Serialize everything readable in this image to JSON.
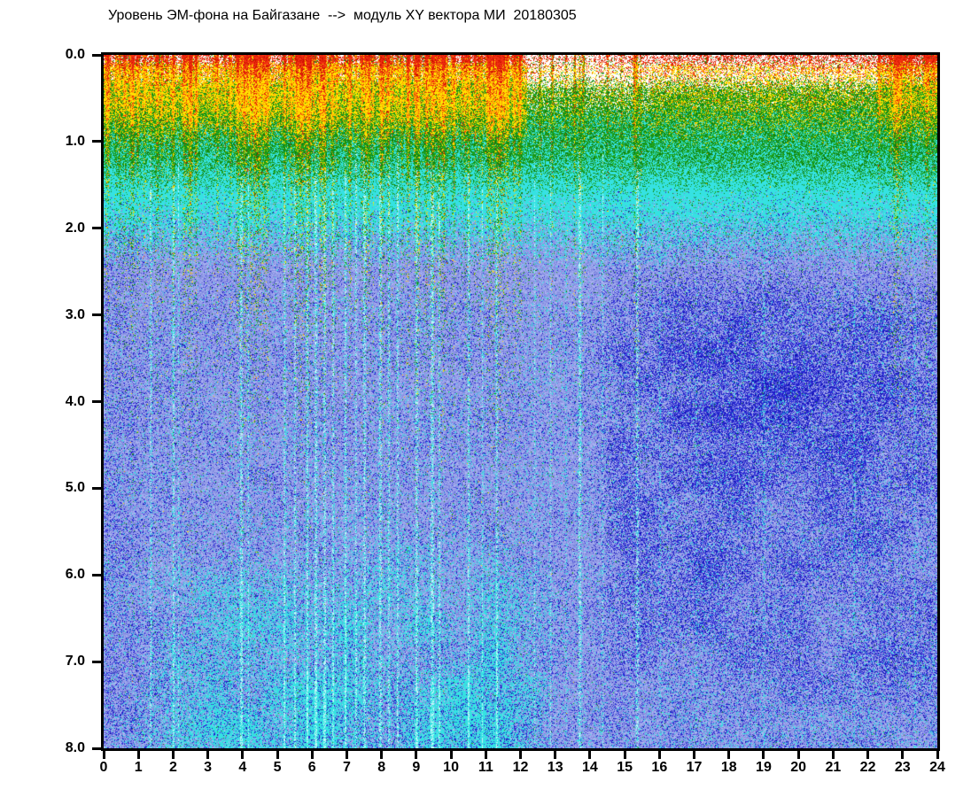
{
  "title": {
    "text": "Уровень ЭМ-фона на Байгазане  -->  модуль XY вектора МИ  20180305"
  },
  "chart_data": {
    "type": "heatmap",
    "title": "Уровень ЭМ-фона на Байгазане  -->  модуль XY вектора МИ  20180305",
    "station_label": "Уровень ЭМ-фона на Байгазане",
    "series_label": "модуль XY вектора МИ",
    "date_label": "20180305",
    "xlabel": "",
    "ylabel": "",
    "xlim": [
      0,
      24
    ],
    "ylim": [
      0,
      8
    ],
    "y_axis_inverted": true,
    "grid": false,
    "legend": "none",
    "x_ticks": [
      "0",
      "1",
      "2",
      "3",
      "4",
      "5",
      "6",
      "7",
      "8",
      "9",
      "10",
      "11",
      "12",
      "13",
      "14",
      "15",
      "16",
      "17",
      "18",
      "19",
      "20",
      "21",
      "22",
      "23",
      "24"
    ],
    "y_ticks": [
      "0.0",
      "1.0",
      "2.0",
      "3.0",
      "4.0",
      "5.0",
      "6.0",
      "7.0",
      "8.0"
    ],
    "noise_seed": 20180305,
    "palette": {
      "red": "#f23010",
      "red_dark": "#cc0f00",
      "orange": "#ff9e00",
      "yellow": "#ffe400",
      "green": "#1ea51e",
      "green_dark": "#0f7d0f",
      "cyan_base": "#49e6e6",
      "cyan_dot": "#35e2e2",
      "cyan_pale": "#bdf8f8",
      "periwinkle_base": "#949ee9",
      "periwinkle_dark": "#7d86dd",
      "periwinkle_light": "#aeb6f2",
      "blue_dark": "#2b2bd8",
      "blue_deep": "#1313b2",
      "background": "#ffffff",
      "axis": "#000000"
    },
    "surface_red_band": [
      [
        0,
        12.2,
        0.55
      ],
      [
        12.2,
        13.4,
        0.3
      ],
      [
        13.4,
        14.1,
        0.18
      ],
      [
        14.1,
        15.8,
        0.35
      ],
      [
        15.8,
        22.3,
        0.5
      ],
      [
        22.3,
        24.01,
        0.8
      ]
    ],
    "yellow_band": [
      [
        0,
        12.2,
        0.95
      ],
      [
        12.2,
        15.8,
        0.3
      ],
      [
        15.8,
        22.3,
        0.5
      ],
      [
        22.3,
        24.01,
        0.8
      ]
    ],
    "green_band": [
      [
        0,
        12.2,
        1.0
      ],
      [
        12.2,
        24.01,
        1.1
      ]
    ],
    "event_columns": {
      "dense_left": {
        "x0": 0,
        "x1": 12.2,
        "count": 120
      },
      "dense_right": {
        "x0": 22.3,
        "x1": 24,
        "count": 12
      },
      "extra": [
        [
          12.55,
          0.5,
          1.3
        ],
        [
          12.9,
          0.55,
          1.4
        ],
        [
          13.3,
          0.4,
          1.2
        ],
        [
          13.55,
          0.6,
          1.6
        ],
        [
          13.8,
          0.5,
          1.3
        ],
        [
          14.5,
          0.35,
          1.1
        ],
        [
          14.9,
          0.3,
          1.0
        ],
        [
          15.28,
          0.85,
          1.6
        ],
        [
          15.45,
          0.4,
          1.1
        ],
        [
          16.55,
          0.22,
          1.0
        ],
        [
          17.35,
          0.2,
          1.0
        ],
        [
          18.05,
          0.2,
          1.0
        ],
        [
          19.15,
          0.22,
          1.0
        ],
        [
          20.3,
          0.2,
          1.0
        ],
        [
          21.15,
          0.2,
          1.0
        ]
      ]
    },
    "dropout_streaks": [
      [
        1.35,
        0.55,
        1.2
      ],
      [
        2.0,
        0.6,
        1.4
      ],
      [
        2.15,
        0.35,
        1.0
      ],
      [
        3.95,
        0.65,
        1.6
      ],
      [
        4.15,
        0.4,
        1.2
      ],
      [
        5.2,
        0.55,
        1.3
      ],
      [
        5.5,
        0.5,
        1.2
      ],
      [
        5.85,
        0.65,
        1.5
      ],
      [
        6.1,
        0.7,
        1.6
      ],
      [
        6.35,
        0.6,
        1.4
      ],
      [
        6.6,
        0.55,
        1.3
      ],
      [
        6.95,
        0.6,
        1.4
      ],
      [
        7.25,
        0.45,
        1.2
      ],
      [
        7.5,
        0.6,
        1.4
      ],
      [
        7.95,
        0.65,
        1.5
      ],
      [
        8.2,
        0.55,
        1.3
      ],
      [
        8.45,
        0.5,
        1.2
      ],
      [
        9.0,
        0.6,
        1.5
      ],
      [
        9.45,
        0.7,
        1.8
      ],
      [
        9.65,
        0.5,
        1.2
      ],
      [
        10.5,
        0.6,
        1.5
      ],
      [
        10.9,
        0.4,
        1.1
      ],
      [
        11.3,
        0.55,
        1.3
      ],
      [
        12.4,
        0.35,
        1.0
      ],
      [
        12.85,
        0.4,
        1.1
      ],
      [
        13.3,
        0.35,
        1.0
      ],
      [
        13.7,
        0.75,
        1.8
      ],
      [
        14.35,
        0.35,
        1.0
      ],
      [
        15.35,
        0.6,
        1.4
      ],
      [
        16.0,
        0.3,
        1.0
      ],
      [
        17.05,
        0.25,
        0.9
      ],
      [
        19.0,
        0.3,
        1.0
      ],
      [
        21.6,
        0.3,
        1.0
      ],
      [
        23.35,
        0.3,
        1.0
      ]
    ],
    "dark_blobs": [
      [
        18.6,
        4.3,
        2.6,
        1.4,
        0.2
      ],
      [
        17.3,
        6.05,
        1.7,
        0.65,
        0.16
      ],
      [
        22.4,
        4.7,
        1.4,
        1.7,
        0.12
      ],
      [
        14.95,
        4.5,
        0.5,
        2.4,
        0.1
      ],
      [
        20.6,
        3.4,
        2.0,
        0.9,
        0.1
      ],
      [
        16.6,
        3.3,
        1.2,
        0.9,
        0.12
      ],
      [
        0.55,
        5.0,
        0.75,
        3.2,
        0.08
      ],
      [
        12.7,
        2.9,
        1.3,
        1.4,
        -0.05
      ]
    ],
    "bottom_cyan_wash": {
      "y0": 5.0,
      "y1": 7.5,
      "x_rise0": 0.2,
      "x_rise1": 3.8,
      "x_fall0": 11.2,
      "x_fall1": 13.6,
      "max": 0.55
    }
  }
}
